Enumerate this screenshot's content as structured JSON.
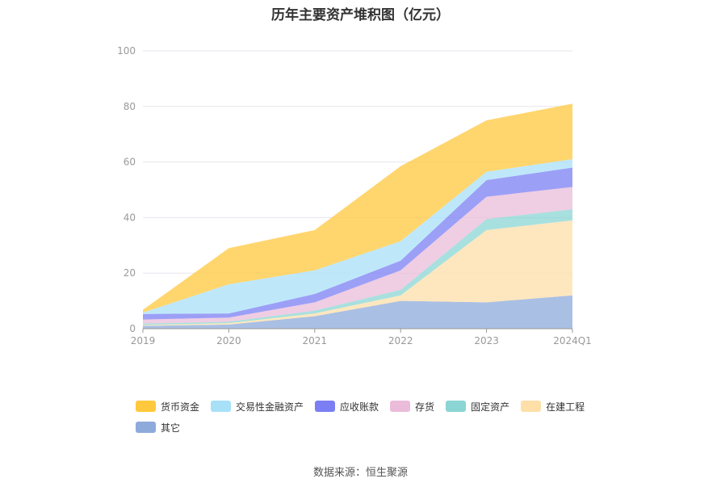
{
  "chart_data": {
    "type": "area",
    "stacked": true,
    "title": "历年主要资产堆积图（亿元）",
    "categories": [
      "2019",
      "2020",
      "2021",
      "2022",
      "2023",
      "2024Q1"
    ],
    "ylim": [
      0,
      100
    ],
    "yticks": [
      0,
      20,
      40,
      60,
      80,
      100
    ],
    "grid": true,
    "legend_position": "bottom",
    "series": [
      {
        "name": "其它",
        "color": "#8eaadb",
        "values": [
          1.0,
          1.5,
          4.5,
          10.0,
          9.5,
          12.0
        ]
      },
      {
        "name": "在建工程",
        "color": "#fedfa8",
        "values": [
          0.3,
          0.5,
          1.0,
          2.0,
          26.0,
          27.0
        ]
      },
      {
        "name": "固定资产",
        "color": "#8bd5d4",
        "values": [
          0.5,
          0.5,
          1.0,
          2.0,
          4.0,
          4.0
        ]
      },
      {
        "name": "存货",
        "color": "#eabcd9",
        "values": [
          1.5,
          1.5,
          3.0,
          7.0,
          8.0,
          8.0
        ]
      },
      {
        "name": "应收账款",
        "color": "#7b7ff3",
        "values": [
          2.0,
          1.5,
          3.0,
          3.5,
          6.0,
          7.0
        ]
      },
      {
        "name": "交易性金融资产",
        "color": "#a8e0f8",
        "values": [
          0.5,
          10.5,
          8.5,
          7.0,
          3.0,
          3.0
        ]
      },
      {
        "name": "货币资金",
        "color": "#ffc83d",
        "values": [
          1.0,
          13.0,
          14.5,
          27.0,
          18.5,
          20.0
        ]
      }
    ],
    "legend_order": [
      "货币资金",
      "交易性金融资产",
      "应收账款",
      "存货",
      "固定资产",
      "在建工程",
      "其它"
    ]
  },
  "source_note": "数据来源：恒生聚源"
}
